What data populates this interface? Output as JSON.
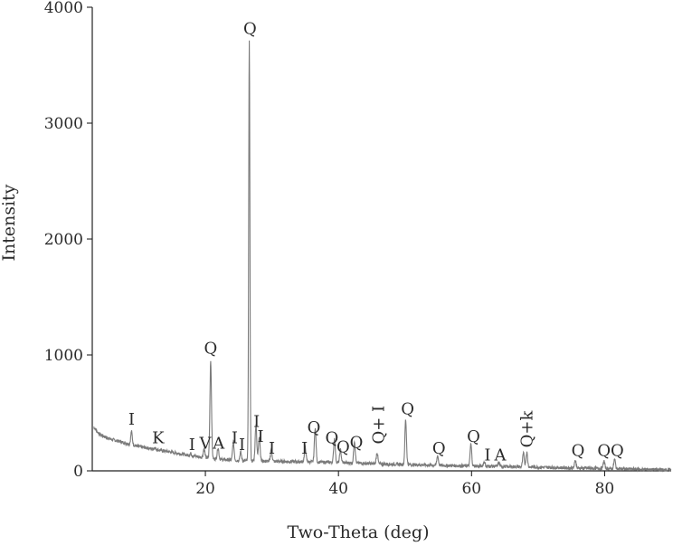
{
  "chart_data": {
    "type": "line",
    "title": "",
    "xlabel": "Two-Theta (deg)",
    "ylabel": "Intensity",
    "xlim": [
      3,
      90
    ],
    "ylim": [
      0,
      4000
    ],
    "xticks": [
      20,
      40,
      60,
      80
    ],
    "yticks": [
      0,
      1000,
      2000,
      3000,
      4000
    ],
    "grid": false,
    "color": "#7a7a7a",
    "baseline": [
      [
        3.2,
        380
      ],
      [
        4,
        320
      ],
      [
        5,
        290
      ],
      [
        6,
        270
      ],
      [
        7,
        255
      ],
      [
        8,
        240
      ],
      [
        9,
        225
      ],
      [
        10,
        210
      ],
      [
        12,
        190
      ],
      [
        14,
        170
      ],
      [
        16,
        150
      ],
      [
        18,
        130
      ],
      [
        20,
        112
      ],
      [
        22,
        100
      ],
      [
        25,
        88
      ],
      [
        28,
        85
      ],
      [
        30,
        82
      ],
      [
        33,
        80
      ],
      [
        35,
        78
      ],
      [
        40,
        72
      ],
      [
        45,
        62
      ],
      [
        50,
        55
      ],
      [
        55,
        48
      ],
      [
        60,
        42
      ],
      [
        65,
        38
      ],
      [
        70,
        32
      ],
      [
        75,
        25
      ],
      [
        80,
        20
      ],
      [
        85,
        14
      ],
      [
        90,
        8
      ]
    ],
    "peaks": [
      {
        "x": 8.9,
        "y": 340,
        "label": "I"
      },
      {
        "x": 12.4,
        "y": 200,
        "label": "K"
      },
      {
        "x": 17.8,
        "y": 150,
        "label": "I"
      },
      {
        "x": 19.8,
        "y": 190,
        "label": "V"
      },
      {
        "x": 20.8,
        "y": 950,
        "label": "Q"
      },
      {
        "x": 21.9,
        "y": 200,
        "label": "A"
      },
      {
        "x": 24.2,
        "y": 250,
        "label": "I"
      },
      {
        "x": 25.3,
        "y": 160,
        "label": "I"
      },
      {
        "x": 26.6,
        "y": 3700,
        "label": "Q"
      },
      {
        "x": 27.6,
        "y": 400,
        "label": "I"
      },
      {
        "x": 28.1,
        "y": 300,
        "label": "I"
      },
      {
        "x": 29.9,
        "y": 190,
        "label": "I"
      },
      {
        "x": 35.0,
        "y": 200,
        "label": "I"
      },
      {
        "x": 36.5,
        "y": 370,
        "label": "Q"
      },
      {
        "x": 39.4,
        "y": 280,
        "label": "Q"
      },
      {
        "x": 40.3,
        "y": 180,
        "label": "Q"
      },
      {
        "x": 42.4,
        "y": 260,
        "label": "Q"
      },
      {
        "x": 45.8,
        "y": 160,
        "label": "Q+ I"
      },
      {
        "x": 50.1,
        "y": 440,
        "label": "Q"
      },
      {
        "x": 54.9,
        "y": 130,
        "label": "Q"
      },
      {
        "x": 59.9,
        "y": 230,
        "label": "Q"
      },
      {
        "x": 61.9,
        "y": 80,
        "label": "I"
      },
      {
        "x": 64.1,
        "y": 70,
        "label": "A"
      },
      {
        "x": 67.8,
        "y": 150,
        "label": "Q+k"
      },
      {
        "x": 68.3,
        "y": 160,
        "label": "Q+k"
      },
      {
        "x": 75.6,
        "y": 90,
        "label": "Q"
      },
      {
        "x": 79.9,
        "y": 85,
        "label": "Q"
      },
      {
        "x": 81.5,
        "y": 100,
        "label": "Q"
      }
    ],
    "annotations": [
      {
        "text": "I",
        "x": 8.9,
        "y": 400
      },
      {
        "text": "K",
        "x": 12.9,
        "y": 240
      },
      {
        "text": "I",
        "x": 18.0,
        "y": 180
      },
      {
        "text": "V",
        "x": 20.0,
        "y": 190
      },
      {
        "text": "A",
        "x": 22.0,
        "y": 190
      },
      {
        "text": "Q",
        "x": 20.8,
        "y": 1010
      },
      {
        "text": "I",
        "x": 24.4,
        "y": 240
      },
      {
        "text": "I",
        "x": 25.5,
        "y": 180
      },
      {
        "text": "Q",
        "x": 26.7,
        "y": 3770
      },
      {
        "text": "I",
        "x": 27.7,
        "y": 380
      },
      {
        "text": "I",
        "x": 28.3,
        "y": 250
      },
      {
        "text": "I",
        "x": 30.0,
        "y": 150
      },
      {
        "text": "I",
        "x": 34.9,
        "y": 150
      },
      {
        "text": "Q",
        "x": 36.3,
        "y": 330
      },
      {
        "text": "Q",
        "x": 39.0,
        "y": 240
      },
      {
        "text": "Q",
        "x": 40.7,
        "y": 160
      },
      {
        "text": "Q",
        "x": 42.7,
        "y": 200
      },
      {
        "text": "Q+ I",
        "x": 46.0,
        "y": 230,
        "rotated": true
      },
      {
        "text": "Q",
        "x": 50.4,
        "y": 490
      },
      {
        "text": "Q",
        "x": 55.1,
        "y": 150
      },
      {
        "text": "Q",
        "x": 60.3,
        "y": 250
      },
      {
        "text": "I",
        "x": 62.4,
        "y": 90
      },
      {
        "text": "A",
        "x": 64.3,
        "y": 90
      },
      {
        "text": "Q+k",
        "x": 68.3,
        "y": 200,
        "rotated": true
      },
      {
        "text": "Q",
        "x": 76.0,
        "y": 130
      },
      {
        "text": "Q",
        "x": 79.9,
        "y": 130
      },
      {
        "text": "Q",
        "x": 81.9,
        "y": 130
      }
    ]
  }
}
